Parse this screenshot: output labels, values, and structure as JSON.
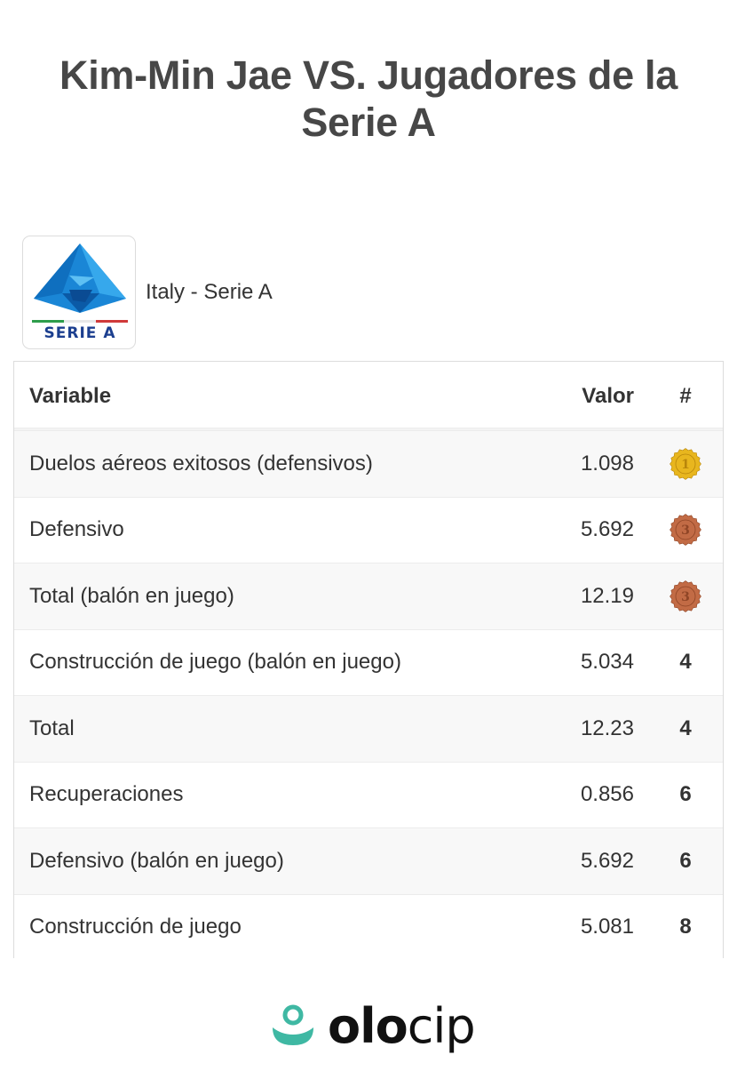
{
  "title": "Kim-Min Jae VS. Jugadores de la Serie A",
  "league": {
    "name": "Italy - Serie A",
    "logo_text": "SERIE A",
    "logo_icon": "serie-a-logo"
  },
  "table": {
    "headers": {
      "variable": "Variable",
      "value": "Valor",
      "rank": "#"
    },
    "rows": [
      {
        "variable": "Duelos aéreos exitosos (defensivos)",
        "value": "1.098",
        "rank": "1",
        "medal": "gold"
      },
      {
        "variable": "Defensivo",
        "value": "5.692",
        "rank": "3",
        "medal": "bronze"
      },
      {
        "variable": "Total (balón en juego)",
        "value": "12.19",
        "rank": "3",
        "medal": "bronze"
      },
      {
        "variable": "Construcción de juego (balón en juego)",
        "value": "5.034",
        "rank": "4",
        "medal": ""
      },
      {
        "variable": "Total",
        "value": "12.23",
        "rank": "4",
        "medal": ""
      },
      {
        "variable": "Recuperaciones",
        "value": "0.856",
        "rank": "6",
        "medal": ""
      },
      {
        "variable": "Defensivo (balón en juego)",
        "value": "5.692",
        "rank": "6",
        "medal": ""
      },
      {
        "variable": "Construcción de juego",
        "value": "5.081",
        "rank": "8",
        "medal": ""
      }
    ]
  },
  "brand": {
    "part1": "olo",
    "part2": "cip",
    "icon": "olocip-logo-icon"
  },
  "colors": {
    "gold": "#e8b61e",
    "bronze": "#c26b45",
    "brand_teal": "#3fb8a3",
    "serie_a_blue": "#1c3f8f"
  }
}
